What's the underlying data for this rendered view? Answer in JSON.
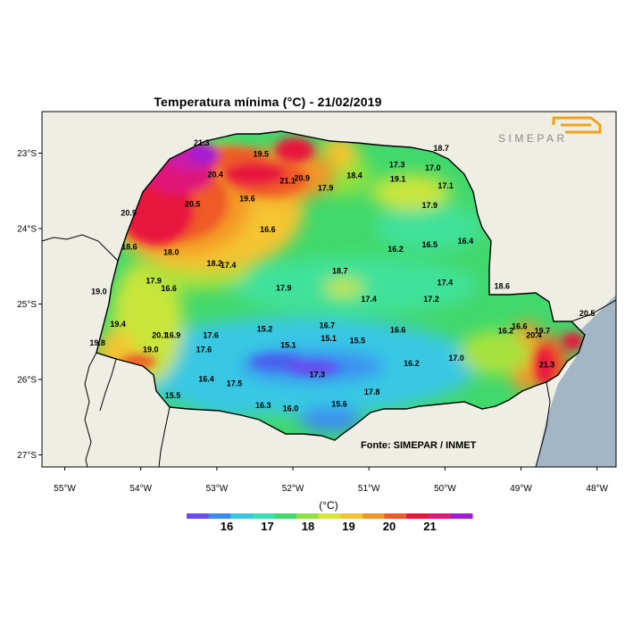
{
  "title": "Temperatura mínima  (°C)  -  21/02/2019",
  "source": "Fonte: SIMEPAR / INMET",
  "logo_text": "SIMEPAR",
  "lat_ticks": [
    "23°S",
    "24°S",
    "25°S",
    "26°S",
    "27°S"
  ],
  "lon_ticks": [
    "55°W",
    "54°W",
    "53°W",
    "52°W",
    "51°W",
    "50°W",
    "49°W",
    "48°W"
  ],
  "colorbar": {
    "unit_label": "(°C)",
    "ticks": [
      "16",
      "17",
      "18",
      "19",
      "20",
      "21"
    ],
    "colors": [
      "#6a4cf0",
      "#3a8cf2",
      "#38c8e4",
      "#39dfb4",
      "#41d86c",
      "#8fe23e",
      "#d8e638",
      "#f4c430",
      "#f39526",
      "#ef5a26",
      "#e8173c",
      "#e01878",
      "#a21cd4"
    ]
  },
  "stations": [
    {
      "label": "21.3",
      "lon": -53.2,
      "lat": -22.9
    },
    {
      "label": "19.5",
      "lon": -52.42,
      "lat": -23.05
    },
    {
      "label": "20.4",
      "lon": -53.02,
      "lat": -23.32
    },
    {
      "label": "20.9",
      "lon": -51.88,
      "lat": -23.37
    },
    {
      "label": "21.1",
      "lon": -52.07,
      "lat": -23.4
    },
    {
      "label": "18.4",
      "lon": -51.19,
      "lat": -23.33
    },
    {
      "label": "17.3",
      "lon": -50.63,
      "lat": -23.19
    },
    {
      "label": "19.1",
      "lon": -50.62,
      "lat": -23.38
    },
    {
      "label": "17.0",
      "lon": -50.16,
      "lat": -23.23
    },
    {
      "label": "17.1",
      "lon": -49.99,
      "lat": -23.47
    },
    {
      "label": "17.9",
      "lon": -51.57,
      "lat": -23.5
    },
    {
      "label": "19.6",
      "lon": -52.6,
      "lat": -23.64
    },
    {
      "label": "20.5",
      "lon": -53.32,
      "lat": -23.71
    },
    {
      "label": "20.9",
      "lon": -54.16,
      "lat": -23.83
    },
    {
      "label": "17.9",
      "lon": -50.2,
      "lat": -23.73
    },
    {
      "label": "16.6",
      "lon": -52.33,
      "lat": -24.05
    },
    {
      "label": "16.4",
      "lon": -49.73,
      "lat": -24.2
    },
    {
      "label": "16.5",
      "lon": -50.2,
      "lat": -24.25
    },
    {
      "label": "16.2",
      "lon": -50.65,
      "lat": -24.31
    },
    {
      "label": "18.6",
      "lon": -54.15,
      "lat": -24.28
    },
    {
      "label": "18.0",
      "lon": -53.6,
      "lat": -24.35
    },
    {
      "label": "18.2",
      "lon": -53.03,
      "lat": -24.5
    },
    {
      "label": "17.4",
      "lon": -52.85,
      "lat": -24.52
    },
    {
      "label": "18.7",
      "lon": -51.38,
      "lat": -24.6
    },
    {
      "label": "17.9",
      "lon": -53.83,
      "lat": -24.73
    },
    {
      "label": "16.6",
      "lon": -53.63,
      "lat": -24.83
    },
    {
      "label": "17.9",
      "lon": -52.12,
      "lat": -24.82
    },
    {
      "label": "17.4",
      "lon": -50.0,
      "lat": -24.75
    },
    {
      "label": "18.6",
      "lon": -49.25,
      "lat": -24.8
    },
    {
      "label": "19.0",
      "lon": -54.55,
      "lat": -24.87
    },
    {
      "label": "17.4",
      "lon": -51.0,
      "lat": -24.97
    },
    {
      "label": "17.2",
      "lon": -50.18,
      "lat": -24.97
    },
    {
      "label": "19.4",
      "lon": -54.3,
      "lat": -25.3
    },
    {
      "label": "16.7",
      "lon": -51.55,
      "lat": -25.32
    },
    {
      "label": "15.2",
      "lon": -52.37,
      "lat": -25.37
    },
    {
      "label": "16.6",
      "lon": -50.62,
      "lat": -25.38
    },
    {
      "label": "16.6",
      "lon": -49.02,
      "lat": -25.33
    },
    {
      "label": "16.2",
      "lon": -49.2,
      "lat": -25.39
    },
    {
      "label": "19.7",
      "lon": -48.72,
      "lat": -25.39
    },
    {
      "label": "20.5",
      "lon": -48.13,
      "lat": -25.16
    },
    {
      "label": "20.4",
      "lon": -48.83,
      "lat": -25.45
    },
    {
      "label": "20.1",
      "lon": -53.75,
      "lat": -25.45
    },
    {
      "label": "16.9",
      "lon": -53.58,
      "lat": -25.45
    },
    {
      "label": "17.6",
      "lon": -53.08,
      "lat": -25.45
    },
    {
      "label": "15.1",
      "lon": -51.53,
      "lat": -25.49
    },
    {
      "label": "15.5",
      "lon": -51.15,
      "lat": -25.52
    },
    {
      "label": "15.1",
      "lon": -52.06,
      "lat": -25.58
    },
    {
      "label": "19.8",
      "lon": -54.57,
      "lat": -25.55
    },
    {
      "label": "19.0",
      "lon": -53.87,
      "lat": -25.64
    },
    {
      "label": "17.6",
      "lon": -53.17,
      "lat": -25.64
    },
    {
      "label": "16.2",
      "lon": -50.44,
      "lat": -25.82
    },
    {
      "label": "17.0",
      "lon": -49.85,
      "lat": -25.75
    },
    {
      "label": "21.3",
      "lon": -48.66,
      "lat": -25.84
    },
    {
      "label": "17.3",
      "lon": -51.68,
      "lat": -25.97
    },
    {
      "label": "16.4",
      "lon": -53.14,
      "lat": -26.03
    },
    {
      "label": "17.5",
      "lon": -52.77,
      "lat": -26.09
    },
    {
      "label": "17.8",
      "lon": -50.96,
      "lat": -26.2
    },
    {
      "label": "16.3",
      "lon": -52.39,
      "lat": -26.38
    },
    {
      "label": "16.0",
      "lon": -52.03,
      "lat": -26.42
    },
    {
      "label": "15.6",
      "lon": -51.39,
      "lat": -26.36
    },
    {
      "label": "15.5",
      "lon": -53.58,
      "lat": -26.25
    },
    {
      "label": "18.7",
      "lon": -50.05,
      "lat": -22.97
    }
  ],
  "colors": {
    "land_outside": "#efeee4",
    "ocean": "#a3b6c6",
    "border": "#000000"
  }
}
